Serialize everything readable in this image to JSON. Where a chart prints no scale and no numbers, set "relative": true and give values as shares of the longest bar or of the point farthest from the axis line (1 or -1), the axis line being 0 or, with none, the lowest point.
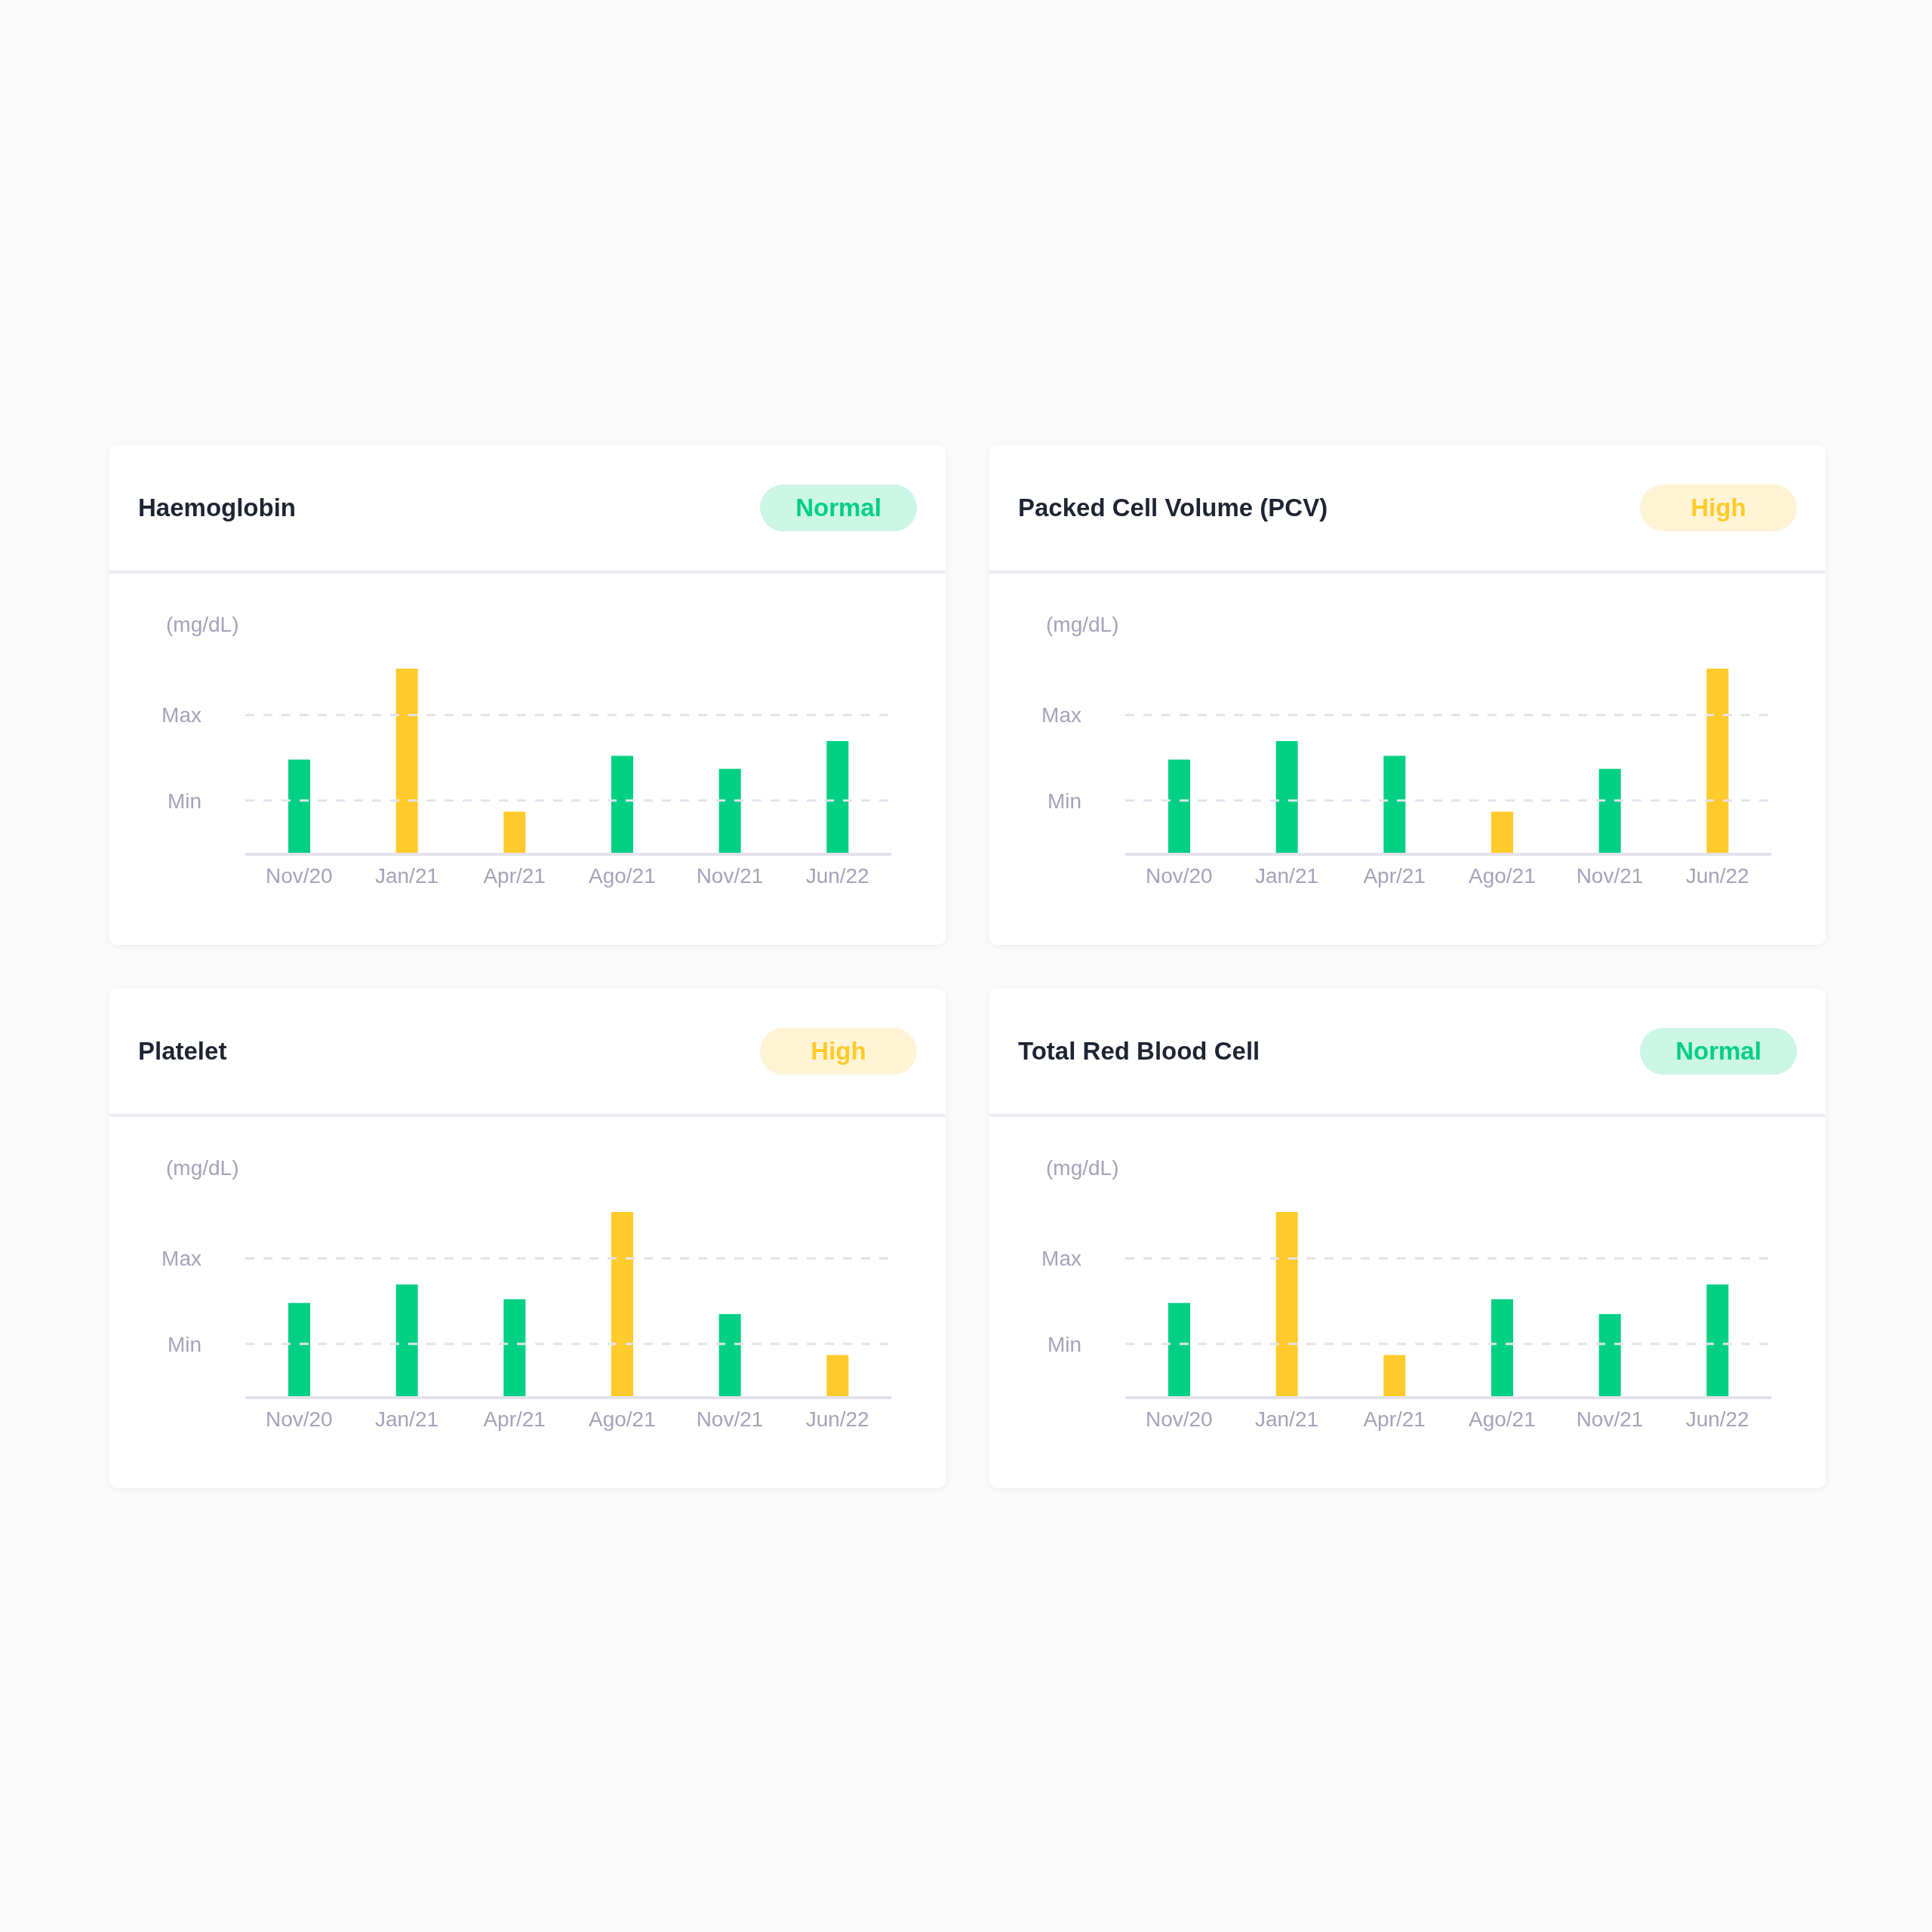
{
  "chart_data": [
    {
      "type": "bar",
      "title": "Haemoglobin",
      "annotations": [
        "Normal"
      ],
      "ylabel": "(mg/dL)",
      "relative": true,
      "categories": [
        "Nov/20",
        "Jan/21",
        "Apr/21",
        "Ago/21",
        "Nov/21",
        "Jun/22"
      ],
      "values": [
        0.51,
        1,
        0.23,
        0.53,
        0.46,
        0.61
      ],
      "colors": [
        "#00d084",
        "#ffca2c",
        "#ffca2c",
        "#00d084",
        "#00d084",
        "#00d084"
      ],
      "ref_lines": [
        {
          "axis": "y",
          "value": 0.75,
          "label": "Max",
          "color": "#e3e3ec",
          "line_style": "dashed"
        },
        {
          "axis": "y",
          "value": 0.29,
          "label": "Min",
          "color": "#e3e3ec",
          "line_style": "dashed"
        }
      ]
    },
    {
      "type": "bar",
      "title": "Packed Cell Volume (PCV)",
      "annotations": [
        "High"
      ],
      "ylabel": "(mg/dL)",
      "relative": true,
      "categories": [
        "Nov/20",
        "Jan/21",
        "Apr/21",
        "Ago/21",
        "Nov/21",
        "Jun/22"
      ],
      "values": [
        0.51,
        0.61,
        0.53,
        0.23,
        0.46,
        1
      ],
      "colors": [
        "#00d084",
        "#00d084",
        "#00d084",
        "#ffca2c",
        "#00d084",
        "#ffca2c"
      ],
      "ref_lines": [
        {
          "axis": "y",
          "value": 0.75,
          "label": "Max",
          "color": "#e3e3ec",
          "line_style": "dashed"
        },
        {
          "axis": "y",
          "value": 0.29,
          "label": "Min",
          "color": "#e3e3ec",
          "line_style": "dashed"
        }
      ]
    },
    {
      "type": "bar",
      "title": "Platelet",
      "annotations": [
        "High"
      ],
      "ylabel": "(mg/dL)",
      "relative": true,
      "categories": [
        "Nov/20",
        "Jan/21",
        "Apr/21",
        "Ago/21",
        "Nov/21",
        "Jun/22"
      ],
      "values": [
        0.51,
        0.61,
        0.53,
        1,
        0.45,
        0.23
      ],
      "colors": [
        "#00d084",
        "#00d084",
        "#00d084",
        "#ffca2c",
        "#00d084",
        "#ffca2c"
      ],
      "ref_lines": [
        {
          "axis": "y",
          "value": 0.75,
          "label": "Max",
          "color": "#e3e3ec",
          "line_style": "dashed"
        },
        {
          "axis": "y",
          "value": 0.29,
          "label": "Min",
          "color": "#e3e3ec",
          "line_style": "dashed"
        }
      ]
    },
    {
      "type": "bar",
      "title": "Total Red Blood Cell",
      "annotations": [
        "Normal"
      ],
      "ylabel": "(mg/dL)",
      "relative": true,
      "categories": [
        "Nov/20",
        "Jan/21",
        "Apr/21",
        "Ago/21",
        "Nov/21",
        "Jun/22"
      ],
      "values": [
        0.51,
        1,
        0.23,
        0.53,
        0.45,
        0.61
      ],
      "colors": [
        "#00d084",
        "#ffca2c",
        "#ffca2c",
        "#00d084",
        "#00d084",
        "#00d084"
      ],
      "ref_lines": [
        {
          "axis": "y",
          "value": 0.75,
          "label": "Max",
          "color": "#e3e3ec",
          "line_style": "dashed"
        },
        {
          "axis": "y",
          "value": 0.29,
          "label": "Min",
          "color": "#e3e3ec",
          "line_style": "dashed"
        }
      ]
    }
  ]
}
